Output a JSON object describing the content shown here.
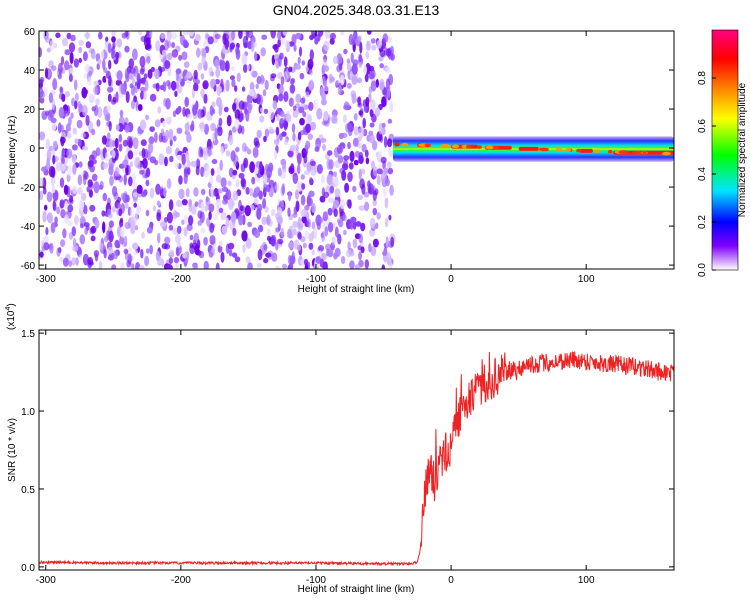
{
  "title": "GN04.2025.348.03.31.E13",
  "chart_data": [
    {
      "type": "heatmap",
      "xlabel": "Height of straight line (km)",
      "ylabel": "Frequency (Hz)",
      "xlim": [
        -305,
        165
      ],
      "ylim": [
        -62,
        60
      ],
      "xticks": [
        -300,
        -200,
        -100,
        0,
        100
      ],
      "xtick_labels": [
        "-300",
        "-200",
        "-100",
        "0",
        "100"
      ],
      "yticks": [
        60,
        40,
        20,
        0,
        -20,
        -40,
        -60
      ],
      "ytick_labels": [
        "60",
        "40",
        "20",
        "0",
        "-20",
        "-40",
        "-60"
      ],
      "noise_region_x": [
        -305,
        -43
      ],
      "signal_band": {
        "x_start": -43,
        "x_end": 165,
        "center_freq": [
          2,
          -3
        ],
        "half_width_hz": 4
      },
      "colorbar": {
        "label": "Normalized spectral amplitude",
        "range": [
          0,
          1
        ],
        "ticks": [
          0.0,
          0.2,
          0.4,
          0.6,
          0.8
        ],
        "tick_labels": [
          "0.0",
          "0.2",
          "0.4",
          "0.6",
          "0.8"
        ],
        "colors": [
          "#ffffff",
          "#8000ff",
          "#0000ff",
          "#00e5ff",
          "#00ff00",
          "#ffff00",
          "#ff8000",
          "#ff0000",
          "#ff0080"
        ]
      },
      "grid": false
    },
    {
      "type": "line",
      "ylabel": "SNR (10 * v/v)",
      "xlabel": "Height of straight line (km)",
      "exponent_label": "(x10",
      "exponent_power": "4",
      "exponent_close": ")",
      "xlim": [
        -305,
        165
      ],
      "ylim": [
        -0.02,
        1.52
      ],
      "xticks": [
        -300,
        -200,
        -100,
        0,
        100
      ],
      "xtick_labels": [
        "-300",
        "-200",
        "-100",
        "0",
        "100"
      ],
      "yticks": [
        0.0,
        0.5,
        1.0,
        1.5
      ],
      "ytick_labels": [
        "0.0",
        "0.5",
        "1.0",
        "1.5"
      ],
      "line_color": "#ee2222",
      "series": [
        {
          "x": [
            -305,
            -250,
            -200,
            -150,
            -100,
            -50,
            -30,
            -25,
            -23,
            -21,
            -19,
            -17,
            -15,
            -12,
            -10,
            -5,
            0,
            5,
            10,
            15,
            20,
            25,
            30,
            40,
            50,
            60,
            70,
            80,
            90,
            100,
            110,
            120,
            130,
            140,
            150,
            165
          ],
          "y": [
            0.03,
            0.025,
            0.025,
            0.025,
            0.025,
            0.02,
            0.02,
            0.03,
            0.1,
            0.3,
            0.5,
            0.6,
            0.6,
            0.55,
            0.62,
            0.72,
            0.78,
            0.92,
            1.05,
            1.1,
            1.15,
            1.18,
            1.2,
            1.25,
            1.28,
            1.3,
            1.31,
            1.32,
            1.33,
            1.32,
            1.31,
            1.3,
            1.29,
            1.28,
            1.26,
            1.24
          ]
        }
      ],
      "grid": false
    }
  ]
}
